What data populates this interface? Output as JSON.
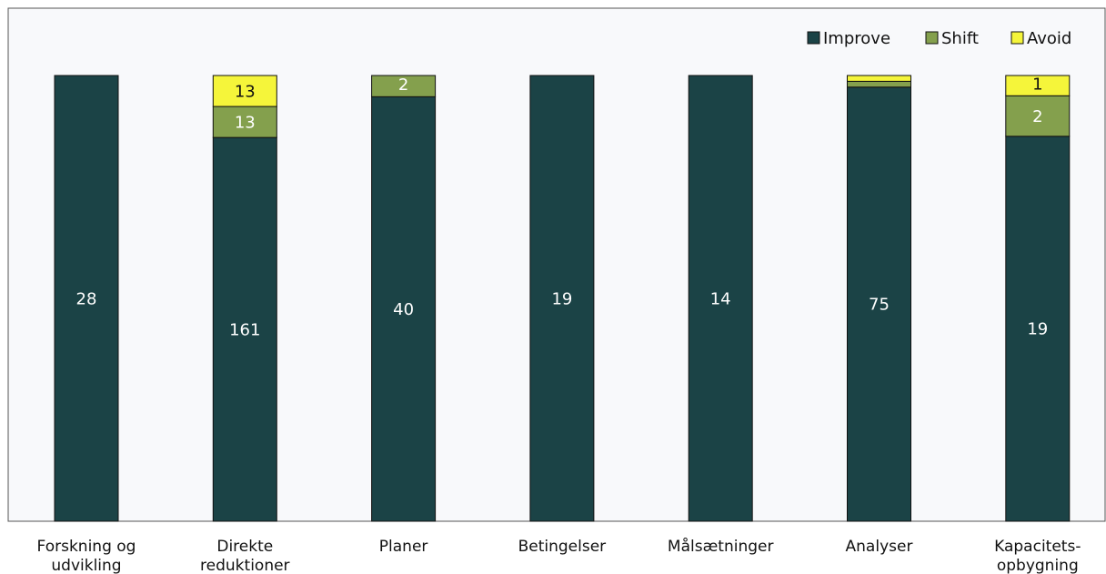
{
  "chart_data": {
    "type": "bar",
    "stacked": "100%",
    "categories": [
      [
        "Forskning og",
        "udvikling"
      ],
      [
        "Direkte",
        "reduktioner"
      ],
      [
        "Planer"
      ],
      [
        "Betingelser"
      ],
      [
        "Målsætninger"
      ],
      [
        "Analyser"
      ],
      [
        "Kapacitets-",
        "opbygning"
      ]
    ],
    "series": [
      {
        "name": "Improve",
        "color": "#1b4346",
        "label_color": "#ffffff",
        "values": [
          28,
          161,
          40,
          19,
          14,
          75,
          19
        ]
      },
      {
        "name": "Shift",
        "color": "#84a04d",
        "label_color": "#ffffff",
        "values": [
          0,
          13,
          2,
          0,
          0,
          1,
          2
        ]
      },
      {
        "name": "Avoid",
        "color": "#f5f53a",
        "label_color": "#111111",
        "values": [
          0,
          13,
          0,
          0,
          0,
          1,
          1
        ]
      }
    ],
    "data_labels": [
      [
        "28",
        "161",
        "40",
        "19",
        "14",
        "75",
        "19"
      ],
      [
        "",
        "13",
        "2",
        "",
        "",
        "",
        "2"
      ],
      [
        "",
        "13",
        "",
        "",
        "",
        "",
        "1"
      ]
    ],
    "legend_position": "top-right",
    "grid": false,
    "plot_background": "#f8f9fb",
    "ylim": [
      0,
      1
    ]
  }
}
